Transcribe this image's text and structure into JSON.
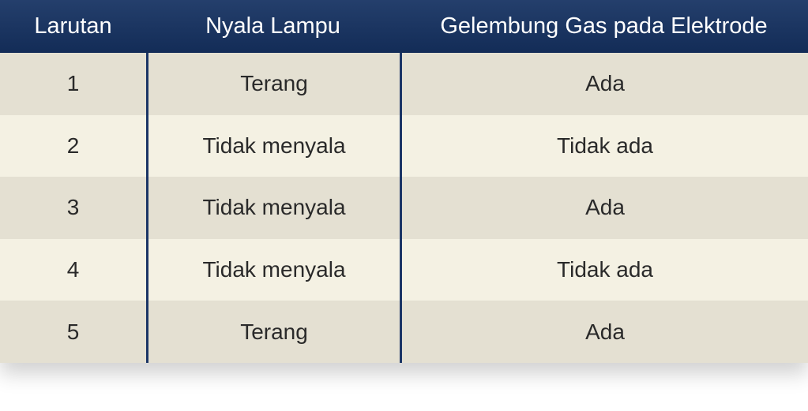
{
  "headers": [
    "Larutan",
    "Nyala Lampu",
    "Gelembung Gas pada Elektrode"
  ],
  "rows": [
    [
      "1",
      "Terang",
      "Ada"
    ],
    [
      "2",
      "Tidak menyala",
      "Tidak ada"
    ],
    [
      "3",
      "Tidak menyala",
      "Ada"
    ],
    [
      "4",
      "Tidak menyala",
      "Tidak ada"
    ],
    [
      "5",
      "Terang",
      "Ada"
    ]
  ],
  "colors": {
    "header": "#1b3566",
    "row_odd": "#e4e0d2",
    "row_even": "#f4f1e3"
  }
}
